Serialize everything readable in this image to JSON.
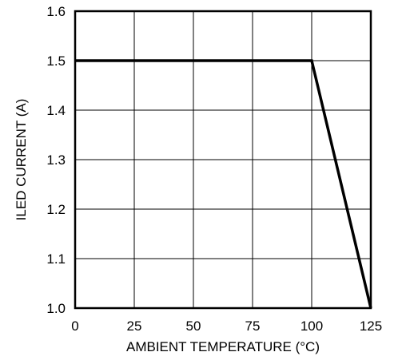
{
  "chart_data": {
    "type": "line",
    "title": "",
    "xlabel": "AMBIENT TEMPERATURE (°C)",
    "ylabel": "ILED CURRENT (A)",
    "xlim": [
      0,
      125
    ],
    "ylim": [
      1.0,
      1.6
    ],
    "xticks": [
      0,
      25,
      50,
      75,
      100,
      125
    ],
    "yticks": [
      1.0,
      1.1,
      1.2,
      1.3,
      1.4,
      1.5,
      1.6
    ],
    "xtick_labels": [
      "0",
      "25",
      "50",
      "75",
      "100",
      "125"
    ],
    "ytick_labels": [
      "1.0",
      "1.1",
      "1.2",
      "1.3",
      "1.4",
      "1.5",
      "1.6"
    ],
    "grid": true,
    "legend": "none",
    "series": [
      {
        "x": [
          0,
          100,
          125
        ],
        "y": [
          1.5,
          1.5,
          1.0
        ],
        "color": "#000000"
      }
    ]
  }
}
